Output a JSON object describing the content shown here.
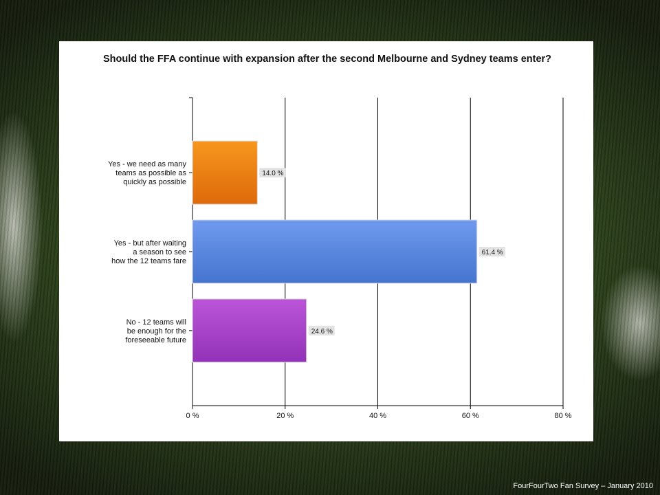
{
  "chart_data": {
    "type": "bar",
    "orientation": "horizontal",
    "title": "Should the FFA continue with expansion after the second Melbourne and Sydney teams enter?",
    "categories": [
      [
        "Yes - we need as many",
        "teams as possible as",
        "quickly as possible"
      ],
      [
        "Yes - but after waiting",
        "a season to see",
        "how the 12 teams fare"
      ],
      [
        "No - 12 teams will",
        "be enough for the",
        "foreseeable future"
      ]
    ],
    "values": [
      14.0,
      61.4,
      24.6
    ],
    "data_labels": [
      "14.0 %",
      "61.4 %",
      "24.6 %"
    ],
    "colors": [
      "#ee7a12",
      "#5a87e0",
      "#a43fc9"
    ],
    "xlim": [
      0,
      80
    ],
    "xticks": [
      0,
      20,
      40,
      60,
      80
    ],
    "xtick_labels": [
      "0 %",
      "20 %",
      "40 %",
      "60 %",
      "80 %"
    ],
    "grid": true
  },
  "footer": "FourFourTwo Fan Survey – January 2010"
}
